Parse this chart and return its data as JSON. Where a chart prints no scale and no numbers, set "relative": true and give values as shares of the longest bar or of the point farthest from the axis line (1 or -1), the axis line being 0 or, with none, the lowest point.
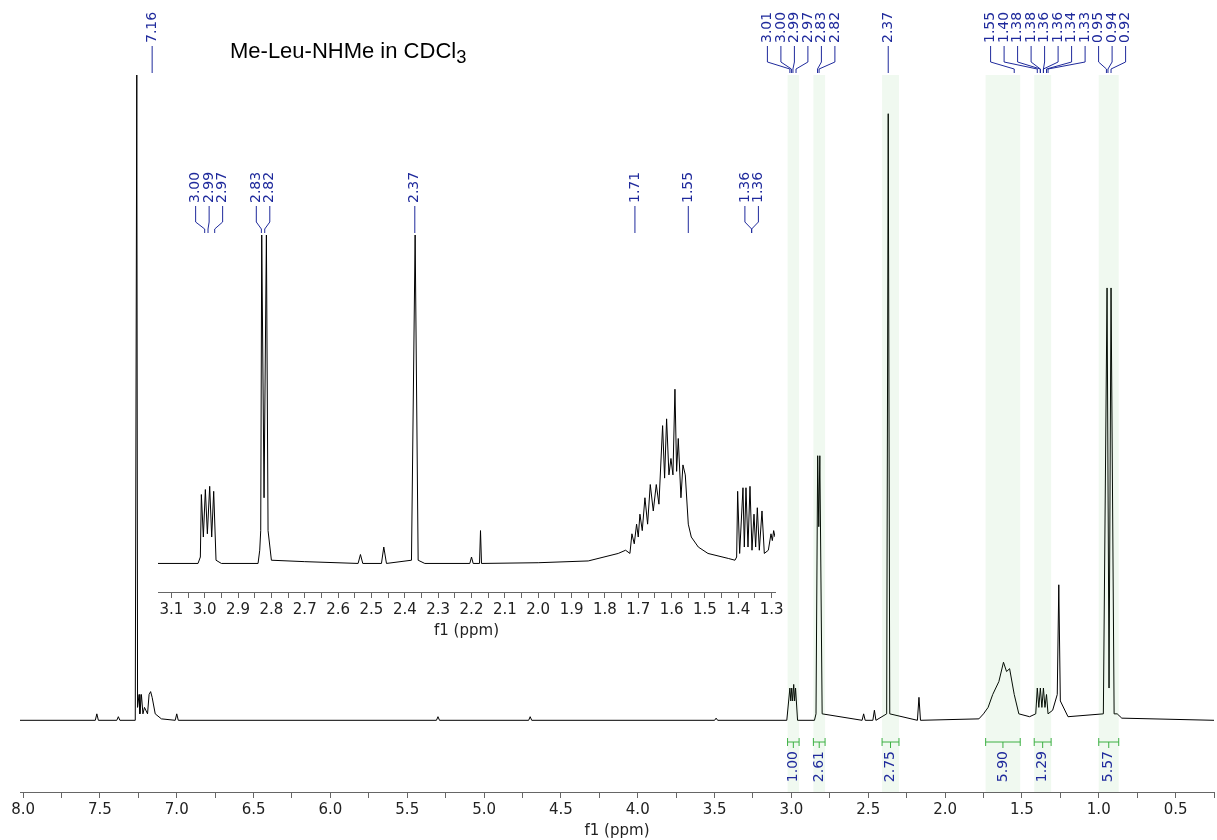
{
  "chart_data": [
    {
      "type": "line",
      "title": "Me-Leu-NHMe in CDCl$_{3}$",
      "xlabel": "f1 (ppm)",
      "relative": true,
      "color": "#000000",
      "xlim": [
        8.02,
        0.25
      ],
      "xticks": [
        {
          "value": 8,
          "label": "8.0"
        },
        {
          "value": 7.75,
          "label": null
        },
        {
          "value": 7.5,
          "label": "7.5"
        },
        {
          "value": 7.25,
          "label": null
        },
        {
          "value": 7,
          "label": "7.0"
        },
        {
          "value": 6.75,
          "label": null
        },
        {
          "value": 6.5,
          "label": "6.5"
        },
        {
          "value": 6.25,
          "label": null
        },
        {
          "value": 6,
          "label": "6.0"
        },
        {
          "value": 5.75,
          "label": null
        },
        {
          "value": 5.5,
          "label": "5.5"
        },
        {
          "value": 5.25,
          "label": null
        },
        {
          "value": 5,
          "label": "5.0"
        },
        {
          "value": 4.75,
          "label": null
        },
        {
          "value": 4.5,
          "label": "4.5"
        },
        {
          "value": 4.25,
          "label": null
        },
        {
          "value": 4,
          "label": "4.0"
        },
        {
          "value": 3.75,
          "label": null
        },
        {
          "value": 3.5,
          "label": "3.5"
        },
        {
          "value": 3.25,
          "label": null
        },
        {
          "value": 3,
          "label": "3.0"
        },
        {
          "value": 2.75,
          "label": null
        },
        {
          "value": 2.5,
          "label": "2.5"
        },
        {
          "value": 2.25,
          "label": null
        },
        {
          "value": 2,
          "label": "2.0"
        },
        {
          "value": 1.75,
          "label": null
        },
        {
          "value": 1.5,
          "label": "1.5"
        },
        {
          "value": 1.25,
          "label": null
        },
        {
          "value": 1,
          "label": "1.0"
        },
        {
          "value": 0.75,
          "label": null
        },
        {
          "value": 0.5,
          "label": "0.5"
        },
        {
          "value": 0.25,
          "label": null
        }
      ],
      "x": [
        8.02,
        7.53,
        7.52,
        7.51,
        7.39,
        7.38,
        7.37,
        7.27,
        7.26,
        7.255,
        7.245,
        7.24,
        7.23,
        7.22,
        7.21,
        7.19,
        7.18,
        7.17,
        7.16,
        7.14,
        7.1,
        7.01,
        7.0,
        6.99,
        5.31,
        5.3,
        5.29,
        4.71,
        4.7,
        4.69,
        3.5,
        3.49,
        3.48,
        3.03,
        3.01,
        3.004,
        2.998,
        2.992,
        2.985,
        2.979,
        2.973,
        2.96,
        2.85,
        2.84,
        2.829,
        2.822,
        2.815,
        2.8,
        2.54,
        2.53,
        2.52,
        2.47,
        2.46,
        2.45,
        2.38,
        2.37,
        2.36,
        2.18,
        2.17,
        2.16,
        1.78,
        1.75,
        1.72,
        1.69,
        1.65,
        1.62,
        1.6,
        1.58,
        1.55,
        1.52,
        1.45,
        1.41,
        1.4,
        1.39,
        1.38,
        1.37,
        1.36,
        1.35,
        1.34,
        1.33,
        1.3,
        1.27,
        1.26,
        1.25,
        1.2,
        0.97,
        0.946,
        0.933,
        0.92,
        0.9,
        0.88,
        0.85,
        0.25
      ],
      "values": [
        0.1,
        0.1,
        0.109,
        0.1,
        0.1,
        0.105,
        0.1,
        0.1,
        1,
        0.118,
        0.136,
        0.109,
        0.136,
        0.109,
        0.118,
        0.109,
        0.136,
        0.14,
        0.132,
        0.109,
        0.102,
        0.1,
        0.109,
        0.1,
        0.1,
        0.105,
        0.1,
        0.1,
        0.105,
        0.1,
        0.1,
        0.103,
        0.1,
        0.1,
        0.145,
        0.127,
        0.145,
        0.127,
        0.15,
        0.127,
        0.145,
        0.1,
        0.1,
        0.109,
        0.469,
        0.37,
        0.469,
        0.109,
        0.1,
        0.109,
        0.1,
        0.1,
        0.114,
        0.1,
        0.109,
        0.946,
        0.109,
        0.1,
        0.132,
        0.1,
        0.102,
        0.109,
        0.118,
        0.136,
        0.154,
        0.181,
        0.168,
        0.172,
        0.136,
        0.109,
        0.105,
        0.109,
        0.145,
        0.118,
        0.145,
        0.118,
        0.145,
        0.118,
        0.136,
        0.109,
        0.114,
        0.136,
        0.289,
        0.127,
        0.105,
        0.109,
        0.703,
        0.145,
        0.703,
        0.109,
        0.109,
        0.103,
        0.1
      ],
      "annotations": [
        {
          "text": "7.16",
          "x": 7.16
        },
        {
          "text": "3.01",
          "x": 3.01
        },
        {
          "text": "3.00",
          "x": 3.0
        },
        {
          "text": "2.99",
          "x": 2.99
        },
        {
          "text": "2.97",
          "x": 2.97
        },
        {
          "text": "2.83",
          "x": 2.83
        },
        {
          "text": "2.82",
          "x": 2.82
        },
        {
          "text": "2.37",
          "x": 2.37
        },
        {
          "text": "1.55",
          "x": 1.55
        },
        {
          "text": "1.40",
          "x": 1.4
        },
        {
          "text": "1.38",
          "x": 1.38
        },
        {
          "text": "1.38",
          "x": 1.38
        },
        {
          "text": "1.36",
          "x": 1.36
        },
        {
          "text": "1.36",
          "x": 1.36
        },
        {
          "text": "1.34",
          "x": 1.34
        },
        {
          "text": "1.33",
          "x": 1.33
        },
        {
          "text": "0.95",
          "x": 0.95
        },
        {
          "text": "0.94",
          "x": 0.94
        },
        {
          "text": "0.92",
          "x": 0.92
        }
      ],
      "bands": [
        {
          "axis": "x",
          "from": 3.025,
          "to": 2.95,
          "label": "1.00",
          "color": "#3cb043"
        },
        {
          "axis": "x",
          "from": 2.857,
          "to": 2.781,
          "label": "2.61",
          "color": "#3cb043"
        },
        {
          "axis": "x",
          "from": 2.41,
          "to": 2.3,
          "label": "2.75",
          "color": "#3cb043"
        },
        {
          "axis": "x",
          "from": 1.736,
          "to": 1.511,
          "label": "5.90",
          "color": "#3cb043"
        },
        {
          "axis": "x",
          "from": 1.42,
          "to": 1.31,
          "label": "1.29",
          "color": "#3cb043"
        },
        {
          "axis": "x",
          "from": 1.0,
          "to": 0.87,
          "label": "5.57",
          "color": "#3cb043"
        }
      ]
    },
    {
      "type": "line",
      "xlabel": "f1 (ppm)",
      "relative": true,
      "color": "#000000",
      "xlim": [
        3.14,
        1.29
      ],
      "xticks": [
        {
          "value": 3.1,
          "label": "3.1"
        },
        {
          "value": 3.05,
          "label": null
        },
        {
          "value": 3.0,
          "label": "3.0"
        },
        {
          "value": 2.95,
          "label": null
        },
        {
          "value": 2.9,
          "label": "2.9"
        },
        {
          "value": 2.85,
          "label": null
        },
        {
          "value": 2.8,
          "label": "2.8"
        },
        {
          "value": 2.75,
          "label": null
        },
        {
          "value": 2.7,
          "label": "2.7"
        },
        {
          "value": 2.65,
          "label": null
        },
        {
          "value": 2.6,
          "label": "2.6"
        },
        {
          "value": 2.55,
          "label": null
        },
        {
          "value": 2.5,
          "label": "2.5"
        },
        {
          "value": 2.45,
          "label": null
        },
        {
          "value": 2.4,
          "label": "2.4"
        },
        {
          "value": 2.35,
          "label": null
        },
        {
          "value": 2.3,
          "label": "2.3"
        },
        {
          "value": 2.25,
          "label": null
        },
        {
          "value": 2.2,
          "label": "2.2"
        },
        {
          "value": 2.15,
          "label": null
        },
        {
          "value": 2.1,
          "label": "2.1"
        },
        {
          "value": 2.05,
          "label": null
        },
        {
          "value": 2.0,
          "label": "2.0"
        },
        {
          "value": 1.95,
          "label": null
        },
        {
          "value": 1.9,
          "label": "1.9"
        },
        {
          "value": 1.85,
          "label": null
        },
        {
          "value": 1.8,
          "label": "1.8"
        },
        {
          "value": 1.75,
          "label": null
        },
        {
          "value": 1.7,
          "label": "1.7"
        },
        {
          "value": 1.65,
          "label": null
        },
        {
          "value": 1.6,
          "label": "1.6"
        },
        {
          "value": 1.55,
          "label": null
        },
        {
          "value": 1.5,
          "label": "1.5"
        },
        {
          "value": 1.45,
          "label": null
        },
        {
          "value": 1.4,
          "label": "1.4"
        },
        {
          "value": 1.35,
          "label": null
        },
        {
          "value": 1.3,
          "label": "1.3"
        }
      ],
      "x": [
        3.14,
        3.02,
        3.013,
        3.01,
        3.004,
        2.998,
        2.992,
        2.985,
        2.979,
        2.973,
        2.966,
        2.95,
        2.84,
        2.835,
        2.832,
        2.829,
        2.822,
        2.815,
        2.81,
        2.8,
        2.7,
        2.54,
        2.533,
        2.526,
        2.47,
        2.463,
        2.455,
        2.38,
        2.369,
        2.36,
        2.34,
        2.205,
        2.2,
        2.195,
        2.176,
        2.173,
        2.17,
        2.0,
        1.85,
        1.76,
        1.738,
        1.725,
        1.719,
        1.712,
        1.705,
        1.7,
        1.695,
        1.688,
        1.68,
        1.672,
        1.664,
        1.655,
        1.646,
        1.638,
        1.627,
        1.621,
        1.615,
        1.608,
        1.602,
        1.596,
        1.59,
        1.585,
        1.58,
        1.572,
        1.566,
        1.559,
        1.55,
        1.541,
        1.52,
        1.491,
        1.43,
        1.41,
        1.405,
        1.402,
        1.396,
        1.386,
        1.382,
        1.377,
        1.371,
        1.365,
        1.359,
        1.353,
        1.348,
        1.343,
        1.337,
        1.329,
        1.322,
        1.31,
        1.302,
        1.298,
        1.294,
        1.29
      ],
      "values": [
        0.08,
        0.08,
        0.098,
        0.273,
        0.154,
        0.287,
        0.163,
        0.296,
        0.154,
        0.282,
        0.089,
        0.08,
        0.08,
        0.117,
        0.172,
        1,
        0.264,
        1,
        0.172,
        0.089,
        0.085,
        0.08,
        0.105,
        0.08,
        0.08,
        0.126,
        0.08,
        0.089,
        1,
        0.089,
        0.08,
        0.08,
        0.098,
        0.08,
        0.08,
        0.172,
        0.08,
        0.082,
        0.087,
        0.108,
        0.117,
        0.108,
        0.163,
        0.135,
        0.19,
        0.154,
        0.218,
        0.172,
        0.264,
        0.19,
        0.301,
        0.227,
        0.301,
        0.246,
        0.466,
        0.319,
        0.485,
        0.328,
        0.374,
        0.328,
        0.568,
        0.338,
        0.43,
        0.264,
        0.356,
        0.328,
        0.19,
        0.154,
        0.126,
        0.108,
        0.094,
        0.089,
        0.098,
        0.282,
        0.108,
        0.292,
        0.126,
        0.292,
        0.126,
        0.296,
        0.117,
        0.218,
        0.126,
        0.236,
        0.117,
        0.227,
        0.108,
        0.117,
        0.163,
        0.144,
        0.172,
        0.154
      ],
      "annotations": [
        {
          "text": "3.00",
          "x": 3.0
        },
        {
          "text": "2.99",
          "x": 2.99
        },
        {
          "text": "2.97",
          "x": 2.97
        },
        {
          "text": "2.83",
          "x": 2.83
        },
        {
          "text": "2.82",
          "x": 2.82
        },
        {
          "text": "2.37",
          "x": 2.37
        },
        {
          "text": "1.71",
          "x": 1.71
        },
        {
          "text": "1.55",
          "x": 1.55
        },
        {
          "text": "1.36",
          "x": 1.36
        },
        {
          "text": "1.36",
          "x": 1.36
        }
      ]
    }
  ]
}
